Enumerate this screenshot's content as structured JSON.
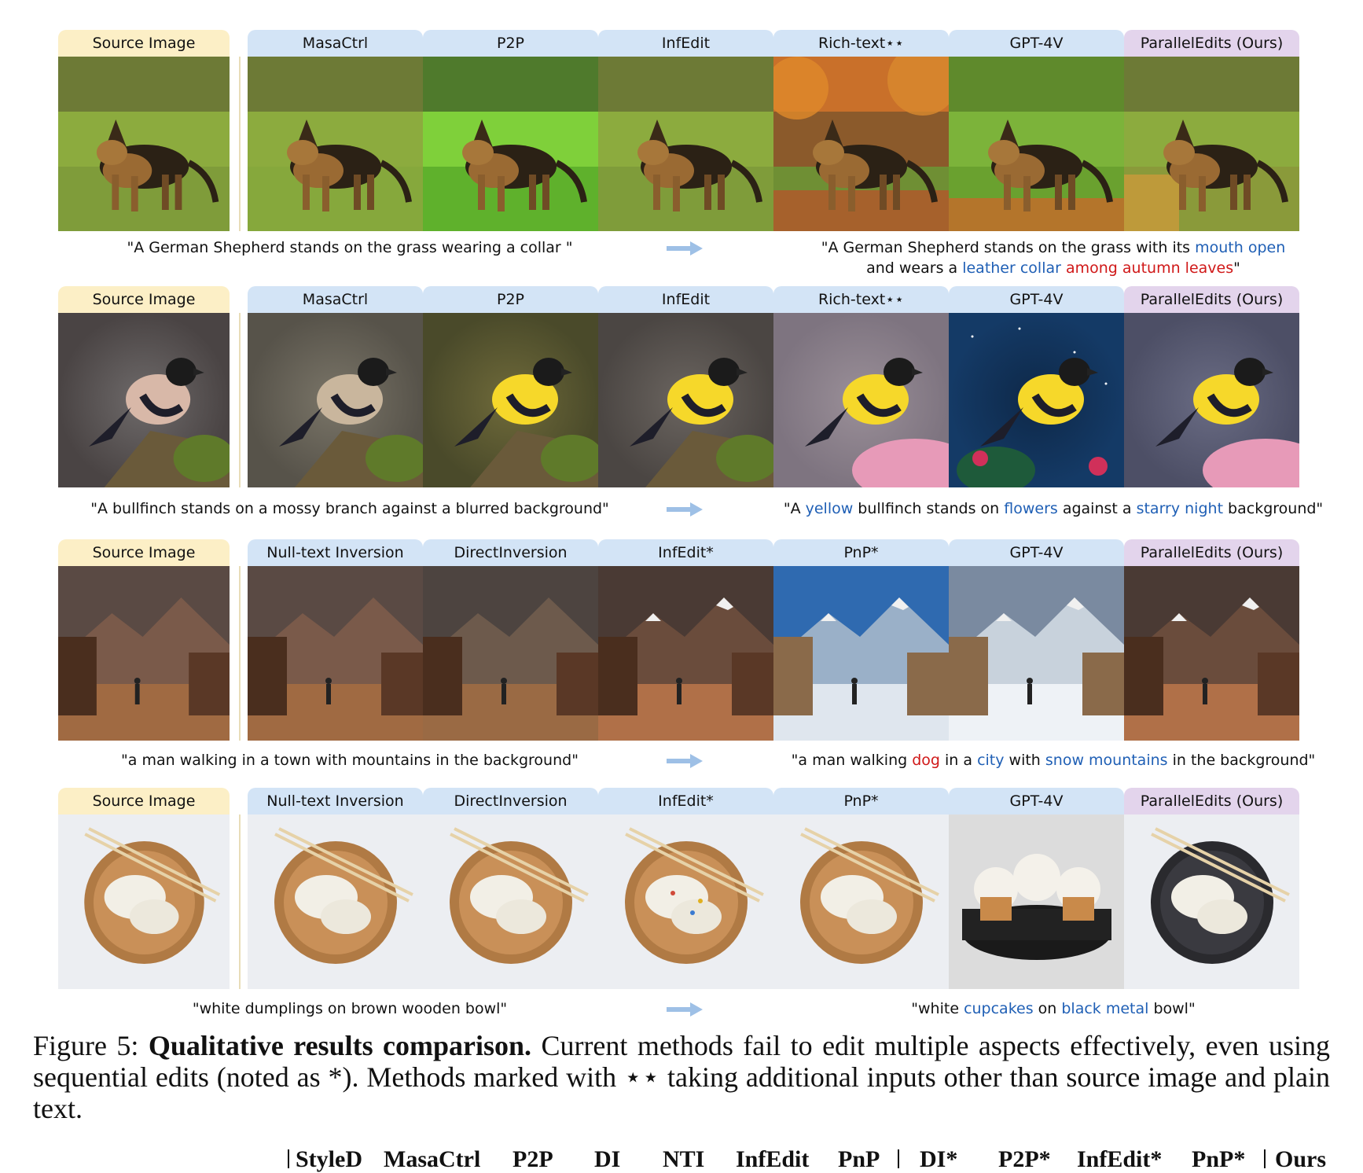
{
  "rows": [
    {
      "headers": [
        "Source Image",
        "MasaCtrl",
        "P2P",
        "InfEdit",
        "Rich-text⋆⋆",
        "GPT-4V",
        "ParallelEdits (Ours)"
      ],
      "source_prompt": "\"A German Shepherd stands on the grass wearing a collar \"",
      "target_line1": [
        {
          "t": "\"A German Shepherd stands on the grass with its ",
          "c": ""
        },
        {
          "t": "mouth open",
          "c": "blue"
        }
      ],
      "target_line2": [
        {
          "t": "and wears a ",
          "c": ""
        },
        {
          "t": "leather collar",
          "c": "blue"
        },
        {
          "t": " ",
          "c": ""
        },
        {
          "t": "among autumn leaves",
          "c": "red"
        },
        {
          "t": "\"",
          "c": ""
        }
      ]
    },
    {
      "headers": [
        "Source Image",
        "MasaCtrl",
        "P2P",
        "InfEdit",
        "Rich-text⋆⋆",
        "GPT-4V",
        "ParallelEdits (Ours)"
      ],
      "source_prompt": "\"A bullfinch stands on a mossy branch against a blurred background\"",
      "target_line1": [
        {
          "t": "\"A ",
          "c": ""
        },
        {
          "t": "yellow",
          "c": "blue"
        },
        {
          "t": " bullfinch stands on ",
          "c": ""
        },
        {
          "t": "flowers",
          "c": "blue"
        },
        {
          "t": " against a ",
          "c": ""
        },
        {
          "t": "starry night",
          "c": "blue"
        },
        {
          "t": " background\"",
          "c": ""
        }
      ],
      "target_line2": []
    },
    {
      "headers": [
        "Source Image",
        "Null-text Inversion",
        "DirectInversion",
        "InfEdit*",
        "PnP*",
        "GPT-4V",
        "ParallelEdits (Ours)"
      ],
      "source_prompt": "\"a man walking in a town with mountains in the background\"",
      "target_line1": [
        {
          "t": "\"a man walking ",
          "c": ""
        },
        {
          "t": "dog",
          "c": "red"
        },
        {
          "t": " in a ",
          "c": ""
        },
        {
          "t": "city",
          "c": "blue"
        },
        {
          "t": " with ",
          "c": ""
        },
        {
          "t": "snow mountains",
          "c": "blue"
        },
        {
          "t": " in the background\"",
          "c": ""
        }
      ],
      "target_line2": []
    },
    {
      "headers": [
        "Source Image",
        "Null-text Inversion",
        "DirectInversion",
        "InfEdit*",
        "PnP*",
        "GPT-4V",
        "ParallelEdits (Ours)"
      ],
      "source_prompt": "\"white dumplings on brown wooden bowl\"",
      "target_line1": [
        {
          "t": "\"white ",
          "c": ""
        },
        {
          "t": "cupcakes",
          "c": "blue"
        },
        {
          "t": " on ",
          "c": ""
        },
        {
          "t": "black metal",
          "c": "blue"
        },
        {
          "t": " bowl\"",
          "c": ""
        }
      ],
      "target_line2": []
    }
  ],
  "caption": {
    "label": "Figure 5: ",
    "bold": "Qualitative results comparison.",
    "text": " Current methods fail to edit multiple aspects effectively, even using sequential edits (noted as *). Methods marked with ⋆⋆ taking additional inputs other than source image and plain text."
  },
  "table_header": [
    "StyleD",
    "MasaCtrl",
    "P2P",
    "DI",
    "NTI",
    "InfEdit",
    "PnP",
    "DI*",
    "P2P*",
    "InfEdit*",
    "PnP*",
    "Ours"
  ]
}
